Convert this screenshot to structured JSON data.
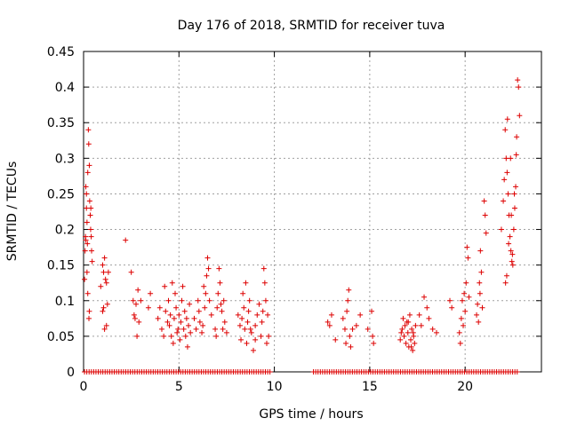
{
  "chart_data": {
    "type": "scatter",
    "title": "Day 176 of 2018, SRMTID for receiver tuva",
    "xlabel": "GPS time / hours",
    "ylabel": "SRMTID / TECUs",
    "xlim": [
      0,
      24
    ],
    "ylim": [
      0,
      0.45
    ],
    "xticks": [
      0,
      5,
      10,
      15,
      20
    ],
    "xtick_labels": [
      "0",
      "5",
      "10",
      "15",
      "20"
    ],
    "yticks": [
      0,
      0.05,
      0.1,
      0.15,
      0.2,
      0.25,
      0.3,
      0.35,
      0.4,
      0.45
    ],
    "ytick_labels": [
      "0",
      "0.05",
      "0.1",
      "0.15",
      "0.2",
      "0.25",
      "0.3",
      "0.35",
      "0.4",
      "0.45"
    ],
    "grid": true,
    "marker": "+",
    "color": "#dd0000",
    "series": [
      {
        "name": "SRMTID",
        "points": [
          [
            0.05,
            0.13
          ],
          [
            0.08,
            0.17
          ],
          [
            0.1,
            0.19
          ],
          [
            0.12,
            0.26
          ],
          [
            0.15,
            0.23
          ],
          [
            0.18,
            0.21
          ],
          [
            0.2,
            0.18
          ],
          [
            0.22,
            0.28
          ],
          [
            0.25,
            0.34
          ],
          [
            0.27,
            0.32
          ],
          [
            0.3,
            0.29
          ],
          [
            0.32,
            0.24
          ],
          [
            0.35,
            0.22
          ],
          [
            0.37,
            0.2
          ],
          [
            0.4,
            0.19
          ],
          [
            0.42,
            0.17
          ],
          [
            0.45,
            0.155
          ],
          [
            0.28,
            0.075
          ],
          [
            0.3,
            0.085
          ],
          [
            0.22,
            0.11
          ],
          [
            0.18,
            0.14
          ],
          [
            0.12,
            0.185
          ],
          [
            0.38,
            0.23
          ],
          [
            0.15,
            0.25
          ],
          [
            0.9,
            0.12
          ],
          [
            1.0,
            0.15
          ],
          [
            1.05,
            0.14
          ],
          [
            1.1,
            0.16
          ],
          [
            1.15,
            0.13
          ],
          [
            1.2,
            0.125
          ],
          [
            1.0,
            0.085
          ],
          [
            1.05,
            0.09
          ],
          [
            1.1,
            0.06
          ],
          [
            1.2,
            0.065
          ],
          [
            1.3,
            0.14
          ],
          [
            1.25,
            0.095
          ],
          [
            2.2,
            0.185
          ],
          [
            2.5,
            0.14
          ],
          [
            2.6,
            0.1
          ],
          [
            2.65,
            0.08
          ],
          [
            2.7,
            0.075
          ],
          [
            2.75,
            0.095
          ],
          [
            2.8,
            0.05
          ],
          [
            2.85,
            0.115
          ],
          [
            2.9,
            0.07
          ],
          [
            3.0,
            0.1
          ],
          [
            3.4,
            0.09
          ],
          [
            3.5,
            0.11
          ],
          [
            3.9,
            0.075
          ],
          [
            4.0,
            0.09
          ],
          [
            4.1,
            0.06
          ],
          [
            4.2,
            0.05
          ],
          [
            4.25,
            0.12
          ],
          [
            4.3,
            0.085
          ],
          [
            4.4,
            0.07
          ],
          [
            4.45,
            0.1
          ],
          [
            4.5,
            0.065
          ],
          [
            4.6,
            0.05
          ],
          [
            4.65,
            0.125
          ],
          [
            4.7,
            0.04
          ],
          [
            4.75,
            0.075
          ],
          [
            4.8,
            0.11
          ],
          [
            4.85,
            0.09
          ],
          [
            4.9,
            0.055
          ],
          [
            4.95,
            0.06
          ],
          [
            5.0,
            0.08
          ],
          [
            5.05,
            0.045
          ],
          [
            5.1,
            0.07
          ],
          [
            5.15,
            0.1
          ],
          [
            5.2,
            0.12
          ],
          [
            5.25,
            0.06
          ],
          [
            5.3,
            0.085
          ],
          [
            5.35,
            0.05
          ],
          [
            5.4,
            0.075
          ],
          [
            5.45,
            0.035
          ],
          [
            5.5,
            0.065
          ],
          [
            5.55,
            0.095
          ],
          [
            4.55,
            0.08
          ],
          [
            5.6,
            0.055
          ],
          [
            5.8,
            0.075
          ],
          [
            5.9,
            0.06
          ],
          [
            6.0,
            0.1
          ],
          [
            6.05,
            0.085
          ],
          [
            6.1,
            0.07
          ],
          [
            6.2,
            0.055
          ],
          [
            6.3,
            0.12
          ],
          [
            6.35,
            0.09
          ],
          [
            6.4,
            0.11
          ],
          [
            6.45,
            0.135
          ],
          [
            6.5,
            0.16
          ],
          [
            6.55,
            0.145
          ],
          [
            6.6,
            0.1
          ],
          [
            6.7,
            0.08
          ],
          [
            6.9,
            0.06
          ],
          [
            7.0,
            0.09
          ],
          [
            7.05,
            0.11
          ],
          [
            7.1,
            0.145
          ],
          [
            7.15,
            0.125
          ],
          [
            7.2,
            0.095
          ],
          [
            7.25,
            0.085
          ],
          [
            7.3,
            0.06
          ],
          [
            7.35,
            0.1
          ],
          [
            7.4,
            0.07
          ],
          [
            7.5,
            0.055
          ],
          [
            6.25,
            0.065
          ],
          [
            6.95,
            0.05
          ],
          [
            8.1,
            0.08
          ],
          [
            8.2,
            0.065
          ],
          [
            8.25,
            0.045
          ],
          [
            8.3,
            0.075
          ],
          [
            8.35,
            0.11
          ],
          [
            8.4,
            0.09
          ],
          [
            8.45,
            0.06
          ],
          [
            8.5,
            0.125
          ],
          [
            8.55,
            0.04
          ],
          [
            8.6,
            0.07
          ],
          [
            8.65,
            0.085
          ],
          [
            8.7,
            0.1
          ],
          [
            8.8,
            0.055
          ],
          [
            8.9,
            0.03
          ],
          [
            9.0,
            0.065
          ],
          [
            9.1,
            0.08
          ],
          [
            9.2,
            0.095
          ],
          [
            9.3,
            0.05
          ],
          [
            9.35,
            0.07
          ],
          [
            9.4,
            0.085
          ],
          [
            9.45,
            0.145
          ],
          [
            9.5,
            0.125
          ],
          [
            9.55,
            0.1
          ],
          [
            9.6,
            0.04
          ],
          [
            9.65,
            0.08
          ],
          [
            9.7,
            0.05
          ],
          [
            9.0,
            0.045
          ],
          [
            8.75,
            0.06
          ],
          [
            12.8,
            0.07
          ],
          [
            12.9,
            0.065
          ],
          [
            13.0,
            0.08
          ],
          [
            13.2,
            0.045
          ],
          [
            13.6,
            0.075
          ],
          [
            13.7,
            0.06
          ],
          [
            13.75,
            0.04
          ],
          [
            13.8,
            0.085
          ],
          [
            13.85,
            0.1
          ],
          [
            13.9,
            0.115
          ],
          [
            13.95,
            0.05
          ],
          [
            14.0,
            0.035
          ],
          [
            14.1,
            0.06
          ],
          [
            14.3,
            0.065
          ],
          [
            14.5,
            0.08
          ],
          [
            14.9,
            0.06
          ],
          [
            15.1,
            0.085
          ],
          [
            15.15,
            0.05
          ],
          [
            15.2,
            0.04
          ],
          [
            16.6,
            0.045
          ],
          [
            16.7,
            0.06
          ],
          [
            16.75,
            0.075
          ],
          [
            16.8,
            0.05
          ],
          [
            16.85,
            0.065
          ],
          [
            16.9,
            0.04
          ],
          [
            16.95,
            0.07
          ],
          [
            17.0,
            0.055
          ],
          [
            17.05,
            0.035
          ],
          [
            17.1,
            0.08
          ],
          [
            17.15,
            0.045
          ],
          [
            17.2,
            0.06
          ],
          [
            17.25,
            0.03
          ],
          [
            17.3,
            0.05
          ],
          [
            17.35,
            0.04
          ],
          [
            17.4,
            0.065
          ],
          [
            16.65,
            0.055
          ],
          [
            17.02,
            0.07
          ],
          [
            17.18,
            0.035
          ],
          [
            17.28,
            0.055
          ],
          [
            17.6,
            0.08
          ],
          [
            17.7,
            0.065
          ],
          [
            17.85,
            0.105
          ],
          [
            18.0,
            0.09
          ],
          [
            18.1,
            0.075
          ],
          [
            18.3,
            0.06
          ],
          [
            18.5,
            0.055
          ],
          [
            19.2,
            0.1
          ],
          [
            19.3,
            0.09
          ],
          [
            19.7,
            0.055
          ],
          [
            19.75,
            0.04
          ],
          [
            19.8,
            0.075
          ],
          [
            19.85,
            0.1
          ],
          [
            19.9,
            0.065
          ],
          [
            19.95,
            0.11
          ],
          [
            20.0,
            0.085
          ],
          [
            20.05,
            0.125
          ],
          [
            20.1,
            0.175
          ],
          [
            20.15,
            0.16
          ],
          [
            20.2,
            0.105
          ],
          [
            20.6,
            0.08
          ],
          [
            20.65,
            0.095
          ],
          [
            20.7,
            0.07
          ],
          [
            20.75,
            0.125
          ],
          [
            20.8,
            0.17
          ],
          [
            20.85,
            0.14
          ],
          [
            20.9,
            0.09
          ],
          [
            21.0,
            0.24
          ],
          [
            21.05,
            0.22
          ],
          [
            21.1,
            0.195
          ],
          [
            20.78,
            0.11
          ],
          [
            21.9,
            0.2
          ],
          [
            22.0,
            0.24
          ],
          [
            22.05,
            0.27
          ],
          [
            22.1,
            0.34
          ],
          [
            22.15,
            0.3
          ],
          [
            22.2,
            0.28
          ],
          [
            22.25,
            0.25
          ],
          [
            22.3,
            0.22
          ],
          [
            22.35,
            0.19
          ],
          [
            22.4,
            0.17
          ],
          [
            22.45,
            0.155
          ],
          [
            22.5,
            0.15
          ],
          [
            22.55,
            0.2
          ],
          [
            22.6,
            0.23
          ],
          [
            22.65,
            0.26
          ],
          [
            22.7,
            0.33
          ],
          [
            22.75,
            0.41
          ],
          [
            22.8,
            0.4
          ],
          [
            22.85,
            0.36
          ],
          [
            22.12,
            0.125
          ],
          [
            22.18,
            0.135
          ],
          [
            22.28,
            0.18
          ],
          [
            22.38,
            0.3
          ],
          [
            22.48,
            0.165
          ],
          [
            22.58,
            0.25
          ],
          [
            22.68,
            0.305
          ],
          [
            22.22,
            0.355
          ],
          [
            22.42,
            0.22
          ]
        ]
      }
    ],
    "zero_ranges": [
      [
        0.05,
        9.8
      ],
      [
        12.05,
        22.8
      ]
    ]
  }
}
